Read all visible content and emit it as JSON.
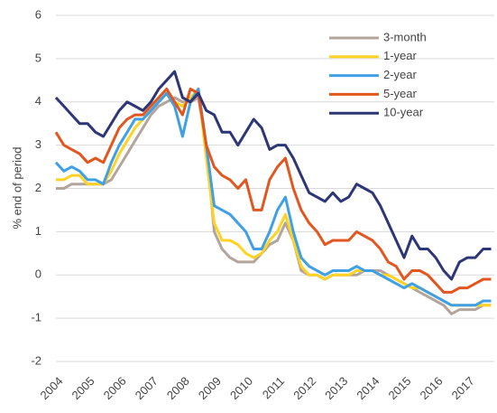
{
  "chart_data": {
    "type": "line",
    "ylabel": "% end of period",
    "x": [
      2004,
      2004.25,
      2004.5,
      2004.75,
      2005,
      2005.25,
      2005.5,
      2005.75,
      2006,
      2006.25,
      2006.5,
      2006.75,
      2007,
      2007.25,
      2007.5,
      2007.75,
      2008,
      2008.25,
      2008.5,
      2008.75,
      2009,
      2009.25,
      2009.5,
      2009.75,
      2010,
      2010.25,
      2010.5,
      2010.75,
      2011,
      2011.25,
      2011.5,
      2011.75,
      2012,
      2012.25,
      2012.5,
      2012.75,
      2013,
      2013.25,
      2013.5,
      2013.75,
      2014,
      2014.25,
      2014.5,
      2014.75,
      2015,
      2015.25,
      2015.5,
      2015.75,
      2016,
      2016.25,
      2016.5,
      2016.75,
      2017,
      2017.25,
      2017.5,
      2017.75
    ],
    "series": [
      {
        "name": "3-month",
        "color": "#b3a59c",
        "values": [
          2.0,
          2.0,
          2.1,
          2.1,
          2.1,
          2.1,
          2.1,
          2.2,
          2.5,
          2.8,
          3.1,
          3.4,
          3.7,
          3.9,
          4.0,
          4.1,
          4.0,
          4.0,
          4.1,
          3.0,
          1.0,
          0.6,
          0.4,
          0.3,
          0.3,
          0.3,
          0.5,
          0.7,
          0.8,
          1.2,
          0.8,
          0.1,
          0.0,
          0.0,
          -0.1,
          0.0,
          0.0,
          0.0,
          0.0,
          0.1,
          0.1,
          0.1,
          0.0,
          -0.1,
          -0.2,
          -0.3,
          -0.4,
          -0.5,
          -0.6,
          -0.7,
          -0.9,
          -0.8,
          -0.8,
          -0.8,
          -0.7,
          -0.7
        ]
      },
      {
        "name": "1-year",
        "color": "#ffd323",
        "values": [
          2.2,
          2.2,
          2.3,
          2.3,
          2.1,
          2.1,
          2.1,
          2.4,
          2.8,
          3.1,
          3.4,
          3.6,
          3.8,
          4.0,
          4.2,
          4.0,
          3.9,
          4.1,
          4.3,
          2.7,
          1.2,
          0.8,
          0.8,
          0.7,
          0.5,
          0.4,
          0.5,
          0.8,
          1.0,
          1.4,
          0.8,
          0.2,
          0.0,
          0.0,
          -0.1,
          0.0,
          0.0,
          0.0,
          0.1,
          0.1,
          0.1,
          0.0,
          0.0,
          -0.1,
          -0.2,
          -0.3,
          -0.3,
          -0.4,
          -0.5,
          -0.6,
          -0.7,
          -0.7,
          -0.7,
          -0.7,
          -0.7,
          -0.7
        ]
      },
      {
        "name": "2-year",
        "color": "#3fa0e6",
        "values": [
          2.6,
          2.4,
          2.5,
          2.4,
          2.2,
          2.2,
          2.1,
          2.6,
          3.0,
          3.3,
          3.6,
          3.6,
          3.8,
          4.0,
          4.2,
          3.9,
          3.2,
          4.0,
          4.3,
          3.0,
          1.6,
          1.5,
          1.4,
          1.2,
          1.0,
          0.6,
          0.6,
          1.0,
          1.5,
          1.8,
          1.0,
          0.4,
          0.2,
          0.1,
          0.0,
          0.1,
          0.1,
          0.1,
          0.2,
          0.1,
          0.1,
          0.0,
          -0.1,
          -0.2,
          -0.3,
          -0.2,
          -0.3,
          -0.4,
          -0.5,
          -0.6,
          -0.7,
          -0.7,
          -0.7,
          -0.7,
          -0.6,
          -0.6
        ]
      },
      {
        "name": "5-year",
        "color": "#e2561f",
        "values": [
          3.3,
          3.0,
          2.9,
          2.8,
          2.6,
          2.7,
          2.6,
          3.0,
          3.4,
          3.6,
          3.7,
          3.7,
          3.9,
          4.1,
          4.3,
          4.0,
          3.7,
          4.3,
          4.2,
          3.0,
          2.5,
          2.3,
          2.2,
          2.0,
          2.2,
          1.5,
          1.5,
          2.2,
          2.5,
          2.7,
          2.0,
          1.5,
          1.2,
          1.0,
          0.7,
          0.8,
          0.8,
          0.8,
          1.0,
          0.9,
          0.8,
          0.6,
          0.3,
          0.2,
          -0.1,
          0.1,
          0.1,
          0.0,
          -0.2,
          -0.4,
          -0.4,
          -0.3,
          -0.3,
          -0.2,
          -0.1,
          -0.1
        ]
      },
      {
        "name": "10-year",
        "color": "#2d3677",
        "values": [
          4.1,
          3.9,
          3.7,
          3.5,
          3.5,
          3.3,
          3.2,
          3.5,
          3.8,
          4.0,
          3.9,
          3.8,
          4.0,
          4.3,
          4.5,
          4.7,
          4.1,
          4.0,
          4.2,
          3.8,
          3.7,
          3.3,
          3.3,
          3.0,
          3.3,
          3.6,
          3.4,
          2.9,
          3.0,
          3.0,
          2.7,
          2.3,
          1.9,
          1.8,
          1.7,
          1.9,
          1.7,
          1.8,
          2.1,
          2.0,
          1.9,
          1.6,
          1.2,
          0.8,
          0.4,
          0.9,
          0.6,
          0.6,
          0.4,
          0.1,
          -0.1,
          0.3,
          0.4,
          0.4,
          0.6,
          0.6
        ]
      }
    ],
    "xlim": [
      2004,
      2017.85
    ],
    "xticks": [
      2004,
      2005,
      2006,
      2007,
      2008,
      2009,
      2010,
      2011,
      2012,
      2013,
      2014,
      2015,
      2016,
      2017
    ],
    "ylim": [
      -2,
      6
    ],
    "yticks": [
      -2,
      -1,
      0,
      1,
      2,
      3,
      4,
      5,
      6
    ],
    "grid": true,
    "legend": "upper right"
  }
}
